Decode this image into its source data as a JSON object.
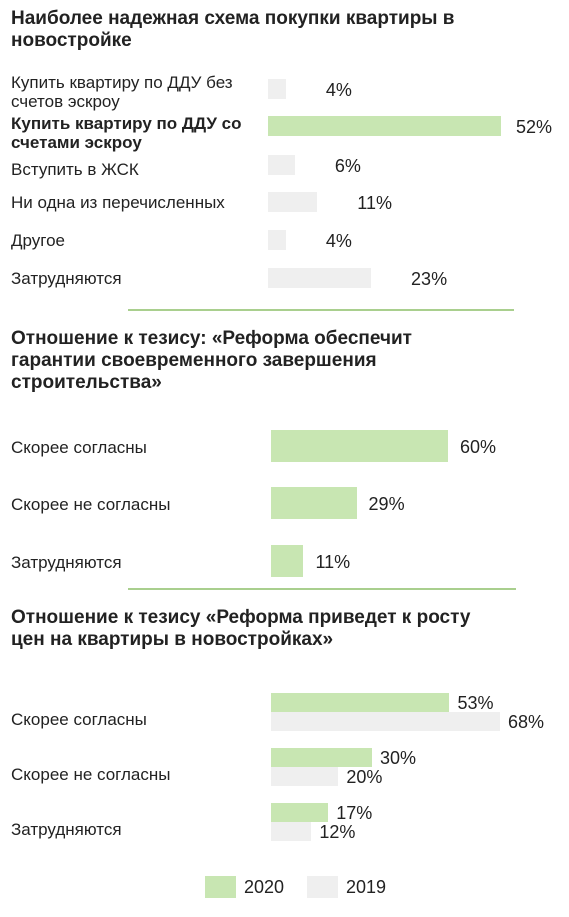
{
  "colors": {
    "y2020": "#c8e6b2",
    "y2019": "#efefef",
    "divider": "#a9cf8e"
  },
  "legend": [
    {
      "label": "2020",
      "color": "#c8e6b2"
    },
    {
      "label": "2019",
      "color": "#efefef"
    }
  ],
  "chart_data": [
    {
      "type": "bar",
      "title": "Наиболее надежная схема покупки квартиры в новостройке",
      "scale_max": 52,
      "categories": [
        "Купить квартиру по ДДУ без счетов эскроу",
        "Купить квартиру по ДДУ со счетами эскроу",
        "Вступить в ЖСК",
        "Ни одна из перечисленных",
        "Другое",
        "Затрудняются"
      ],
      "highlighted": [
        false,
        true,
        false,
        false,
        false,
        false
      ],
      "series": [
        {
          "values": [
            4,
            52,
            6,
            11,
            4,
            23
          ]
        }
      ],
      "value_labels": [
        "4%",
        "52%",
        "6%",
        "11%",
        "4%",
        "23%"
      ]
    },
    {
      "type": "bar",
      "title": "Отношение к тезису: «Реформа обеспечит гарантии своевременного завершения строительства»",
      "scale_max": 60,
      "categories": [
        "Скорее согласны",
        "Скорее не согласны",
        "Затрудняются"
      ],
      "series": [
        {
          "values": [
            60,
            29,
            11
          ]
        }
      ],
      "value_labels": [
        "60%",
        "29%",
        "11%"
      ]
    },
    {
      "type": "bar",
      "title": "Отношение к тезису «Реформа приведет к росту цен на квартиры в новостройках»",
      "scale_max": 68,
      "categories": [
        "Скорее согласны",
        "Скорее не согласны",
        "Затрудняются"
      ],
      "series": [
        {
          "name": "2020",
          "values": [
            53,
            30,
            17
          ],
          "value_labels": [
            "53%",
            "30%",
            "17%"
          ]
        },
        {
          "name": "2019",
          "values": [
            68,
            20,
            12
          ],
          "value_labels": [
            "68%",
            "20%",
            "12%"
          ]
        }
      ]
    }
  ]
}
